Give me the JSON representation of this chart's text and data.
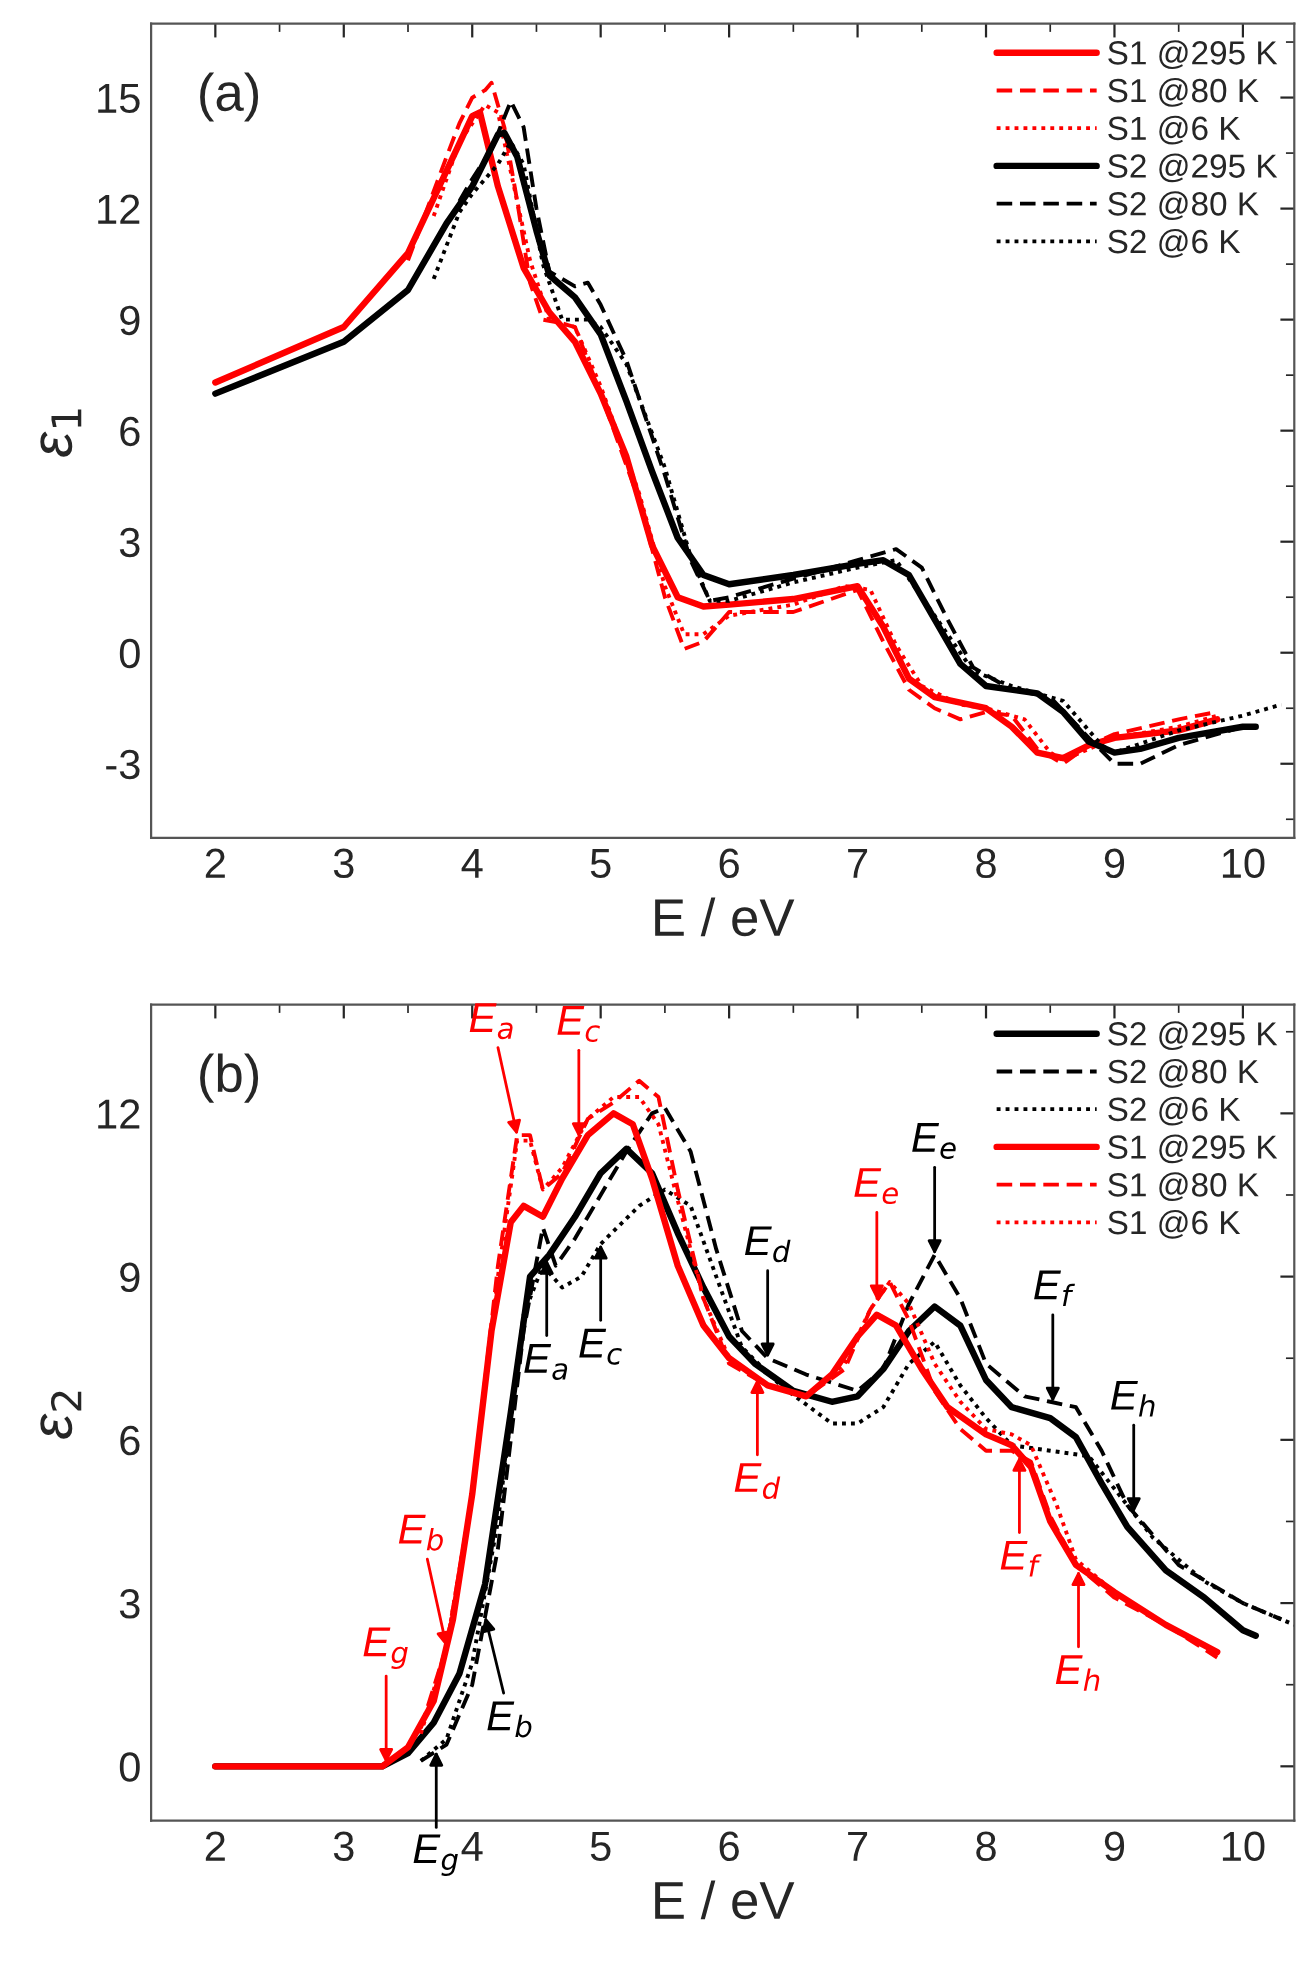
{
  "chart_data": [
    {
      "type": "line",
      "xlabel": "E / eV",
      "ylabel": "ε$_{1}$",
      "xlim": [
        1.5,
        10.4
      ],
      "ylim": [
        -5,
        17
      ],
      "xticks": [
        2,
        3,
        4,
        5,
        6,
        7,
        8,
        9,
        10
      ],
      "yticks": [
        -3,
        0,
        3,
        6,
        9,
        12,
        15
      ],
      "legend": "top right",
      "grid": false,
      "annotations": [
        "(a)"
      ],
      "series": [
        {
          "name": "S1 @295 K",
          "color": "#ff0000",
          "line_style": "solid",
          "x": [
            2.0,
            3.0,
            3.5,
            4.0,
            4.06,
            4.2,
            4.4,
            4.6,
            4.8,
            5.0,
            5.2,
            5.4,
            5.6,
            5.8,
            6.0,
            6.5,
            7.0,
            7.2,
            7.4,
            7.6,
            8.0,
            8.2,
            8.4,
            8.6,
            8.8,
            9.0,
            9.5,
            9.8
          ],
          "values": [
            7.3,
            8.8,
            10.8,
            14.5,
            14.6,
            12.6,
            10.4,
            9.2,
            8.4,
            7.0,
            5.3,
            2.9,
            1.5,
            1.25,
            1.3,
            1.45,
            1.8,
            0.7,
            -0.7,
            -1.2,
            -1.5,
            -2.0,
            -2.7,
            -2.85,
            -2.5,
            -2.3,
            -2.1,
            -1.8
          ]
        },
        {
          "name": "S1 @80 K",
          "color": "#ff0000",
          "line_style": "dashed",
          "x": [
            3.5,
            3.8,
            3.9,
            4.0,
            4.1,
            4.15,
            4.25,
            4.35,
            4.45,
            4.55,
            4.7,
            4.8,
            5.0,
            5.3,
            5.5,
            5.65,
            5.8,
            6.0,
            6.5,
            7.0,
            7.2,
            7.4,
            7.6,
            7.8,
            8.0,
            8.2,
            8.4,
            8.6,
            8.8,
            9.0,
            9.5,
            9.8
          ],
          "values": [
            10.6,
            13.4,
            14.3,
            15.0,
            15.2,
            15.4,
            14.2,
            12.2,
            10.0,
            9.0,
            8.9,
            8.8,
            7.0,
            4.1,
            1.5,
            0.1,
            0.3,
            1.1,
            1.1,
            1.7,
            0.3,
            -1.0,
            -1.5,
            -1.8,
            -1.6,
            -1.7,
            -2.6,
            -3.0,
            -2.5,
            -2.2,
            -1.8,
            -1.6
          ]
        },
        {
          "name": "S1 @6 K",
          "color": "#ff0000",
          "line_style": "dotted",
          "x": [
            3.7,
            3.9,
            4.1,
            4.2,
            4.3,
            4.45,
            4.6,
            4.8,
            5.0,
            5.3,
            5.5,
            5.65,
            5.8,
            6.0,
            6.5,
            6.9,
            7.1,
            7.3,
            7.5,
            7.8,
            8.0,
            8.3,
            8.5,
            8.6,
            8.8,
            9.0,
            9.5,
            9.8
          ],
          "values": [
            11.8,
            13.8,
            14.8,
            14.6,
            13.0,
            10.6,
            9.0,
            8.8,
            7.2,
            4.3,
            1.8,
            0.5,
            0.5,
            1.0,
            1.3,
            1.8,
            1.7,
            0.2,
            -0.9,
            -1.4,
            -1.5,
            -1.8,
            -2.7,
            -2.9,
            -2.6,
            -2.3,
            -2.0,
            -1.7
          ]
        },
        {
          "name": "S2 @295 K",
          "color": "#000000",
          "line_style": "solid",
          "x": [
            2.0,
            3.0,
            3.5,
            3.8,
            4.0,
            4.2,
            4.25,
            4.35,
            4.5,
            4.6,
            4.8,
            5.0,
            5.2,
            5.4,
            5.6,
            5.8,
            6.0,
            6.5,
            7.0,
            7.2,
            7.4,
            7.6,
            7.8,
            8.0,
            8.4,
            8.6,
            8.8,
            9.0,
            9.2,
            9.5,
            10.0,
            10.1
          ],
          "values": [
            7.0,
            8.4,
            9.8,
            11.6,
            12.6,
            14.0,
            14.05,
            13.4,
            11.4,
            10.2,
            9.6,
            8.6,
            6.8,
            4.9,
            3.1,
            2.1,
            1.85,
            2.1,
            2.4,
            2.5,
            2.1,
            0.9,
            -0.3,
            -0.9,
            -1.1,
            -1.6,
            -2.4,
            -2.7,
            -2.6,
            -2.3,
            -2.0,
            -2.0
          ]
        },
        {
          "name": "S2 @80 K",
          "color": "#000000",
          "line_style": "dashed",
          "x": [
            3.9,
            4.0,
            4.15,
            4.3,
            4.4,
            4.5,
            4.6,
            4.8,
            4.9,
            5.0,
            5.2,
            5.5,
            5.7,
            5.85,
            6.0,
            6.5,
            7.0,
            7.3,
            7.5,
            7.7,
            7.9,
            8.2,
            8.5,
            8.8,
            9.0,
            9.2,
            9.5,
            10.0
          ],
          "values": [
            12.2,
            12.8,
            13.6,
            14.9,
            14.2,
            12.0,
            10.3,
            9.9,
            10.0,
            9.4,
            7.9,
            4.8,
            2.5,
            1.4,
            1.5,
            2.0,
            2.5,
            2.8,
            2.3,
            0.9,
            -0.4,
            -1.0,
            -1.2,
            -2.3,
            -3.0,
            -3.0,
            -2.5,
            -2.0
          ]
        },
        {
          "name": "S2 @6 K",
          "color": "#000000",
          "line_style": "dotted",
          "x": [
            3.7,
            3.9,
            4.0,
            4.2,
            4.3,
            4.4,
            4.55,
            4.7,
            4.9,
            5.0,
            5.2,
            5.5,
            5.7,
            5.85,
            6.0,
            6.5,
            7.0,
            7.3,
            7.6,
            7.9,
            8.2,
            8.6,
            8.9,
            9.0,
            9.5,
            10.0,
            10.3
          ],
          "values": [
            10.1,
            11.9,
            12.4,
            13.2,
            13.8,
            13.2,
            10.5,
            9.0,
            9.0,
            8.8,
            7.8,
            5.0,
            2.6,
            1.4,
            1.4,
            1.9,
            2.3,
            2.5,
            1.0,
            -0.5,
            -0.9,
            -1.3,
            -2.5,
            -2.7,
            -2.1,
            -1.7,
            -1.4
          ]
        }
      ]
    },
    {
      "type": "line",
      "xlabel": "E / eV",
      "ylabel": "ε$_{2}$",
      "xlim": [
        1.5,
        10.4
      ],
      "ylim": [
        -1,
        14
      ],
      "xticks": [
        2,
        3,
        4,
        5,
        6,
        7,
        8,
        9,
        10
      ],
      "yticks": [
        0,
        3,
        6,
        9,
        12
      ],
      "legend": "top right",
      "grid": false,
      "annotations": [
        "(b)",
        {
          "text": "E$_{g}$",
          "x": 3.33,
          "y": 0.05
        },
        {
          "text": "E$_{b}$",
          "x": 3.8,
          "y": 2.2
        },
        {
          "text": "E$_{a}$",
          "x": 4.35,
          "y": 11.6
        },
        {
          "text": "E$_{c}$",
          "x": 4.83,
          "y": 11.55
        },
        {
          "text": "E$_{d}$",
          "x": 6.22,
          "y": 7.13
        },
        {
          "text": "E$_{e}$",
          "x": 7.15,
          "y": 8.57
        },
        {
          "text": "E$_{f}$",
          "x": 8.26,
          "y": 5.7
        },
        {
          "text": "E$_{h}$",
          "x": 8.72,
          "y": 3.6
        },
        {
          "text": "E$_{g}$",
          "x": 3.72,
          "y": 0.28
        },
        {
          "text": "E$_{b}$",
          "x": 4.1,
          "y": 2.75
        },
        {
          "text": "E$_{a}$",
          "x": 4.58,
          "y": 9.32
        },
        {
          "text": "E$_{c}$",
          "x": 5.0,
          "y": 9.6
        },
        {
          "text": "E$_{d}$",
          "x": 6.3,
          "y": 7.5
        },
        {
          "text": "E$_{e}$",
          "x": 7.6,
          "y": 9.4
        },
        {
          "text": "E$_{f}$",
          "x": 8.52,
          "y": 6.69
        },
        {
          "text": "E$_{h}$",
          "x": 9.15,
          "y": 4.66
        }
      ],
      "series": [
        {
          "name": "S2 @295 K",
          "color": "#000000",
          "line_style": "solid",
          "x": [
            2.0,
            3.3,
            3.5,
            3.7,
            3.9,
            4.1,
            4.3,
            4.45,
            4.6,
            4.8,
            5.0,
            5.2,
            5.4,
            5.6,
            5.8,
            6.0,
            6.2,
            6.5,
            6.8,
            7.0,
            7.2,
            7.4,
            7.6,
            7.8,
            8.0,
            8.2,
            8.5,
            8.7,
            8.9,
            9.1,
            9.4,
            9.7,
            10.0,
            10.1
          ],
          "values": [
            0,
            0,
            0.24,
            0.8,
            1.7,
            3.35,
            6.5,
            9.0,
            9.4,
            10.1,
            10.9,
            11.35,
            10.9,
            9.8,
            8.8,
            7.9,
            7.4,
            6.9,
            6.7,
            6.8,
            7.3,
            8.0,
            8.45,
            8.1,
            7.1,
            6.6,
            6.4,
            6.05,
            5.2,
            4.4,
            3.6,
            3.1,
            2.5,
            2.4
          ]
        },
        {
          "name": "S2 @80 K",
          "color": "#000000",
          "line_style": "dashed",
          "x": [
            3.6,
            3.8,
            4.0,
            4.2,
            4.4,
            4.55,
            4.65,
            4.8,
            5.0,
            5.2,
            5.4,
            5.5,
            5.7,
            5.9,
            6.1,
            6.3,
            6.6,
            7.0,
            7.2,
            7.4,
            7.6,
            7.8,
            8.0,
            8.3,
            8.5,
            8.7,
            8.9,
            9.1,
            9.5,
            10.0,
            10.3
          ],
          "values": [
            0.1,
            0.4,
            1.5,
            4.0,
            8.0,
            9.9,
            9.2,
            9.7,
            10.5,
            11.3,
            12.0,
            12.1,
            11.3,
            9.5,
            8.0,
            7.5,
            7.2,
            6.9,
            7.3,
            8.5,
            9.4,
            8.6,
            7.4,
            6.8,
            6.7,
            6.6,
            5.8,
            4.8,
            3.7,
            3.0,
            2.7
          ]
        },
        {
          "name": "S2 @6 K",
          "color": "#000000",
          "line_style": "dotted",
          "x": [
            3.6,
            3.8,
            4.0,
            4.2,
            4.4,
            4.55,
            4.7,
            4.85,
            5.0,
            5.3,
            5.5,
            5.7,
            5.9,
            6.1,
            6.4,
            6.8,
            7.0,
            7.2,
            7.4,
            7.6,
            7.8,
            8.0,
            8.2,
            8.5,
            8.8,
            9.0,
            9.3,
            9.7,
            10.0,
            10.4
          ],
          "values": [
            0.1,
            0.5,
            1.9,
            4.5,
            8.3,
            9.2,
            8.8,
            9.0,
            9.6,
            10.3,
            10.6,
            10.3,
            9.0,
            7.7,
            7.0,
            6.3,
            6.3,
            6.6,
            7.4,
            7.8,
            7.0,
            6.4,
            5.9,
            5.8,
            5.7,
            5.1,
            4.2,
            3.4,
            3.0,
            2.6
          ]
        },
        {
          "name": "S1 @295 K",
          "color": "#ff0000",
          "line_style": "solid",
          "x": [
            2.0,
            3.3,
            3.5,
            3.7,
            3.85,
            4.0,
            4.15,
            4.3,
            4.4,
            4.55,
            4.7,
            4.9,
            5.1,
            5.25,
            5.4,
            5.6,
            5.8,
            6.0,
            6.3,
            6.6,
            6.8,
            7.0,
            7.15,
            7.3,
            7.5,
            7.7,
            8.0,
            8.2,
            8.35,
            8.5,
            8.7,
            9.0,
            9.4,
            9.8
          ],
          "values": [
            0,
            0,
            0.35,
            1.2,
            2.7,
            5.0,
            8.0,
            10.0,
            10.3,
            10.1,
            10.8,
            11.6,
            12.0,
            11.8,
            10.8,
            9.2,
            8.1,
            7.5,
            7.0,
            6.8,
            7.2,
            7.9,
            8.3,
            8.1,
            7.3,
            6.6,
            6.1,
            5.9,
            5.5,
            4.5,
            3.7,
            3.2,
            2.6,
            2.1
          ]
        },
        {
          "name": "S1 @80 K",
          "color": "#ff0000",
          "line_style": "dashed",
          "x": [
            3.6,
            3.8,
            4.0,
            4.2,
            4.35,
            4.45,
            4.55,
            4.7,
            4.9,
            5.1,
            5.3,
            5.45,
            5.6,
            5.8,
            6.0,
            6.3,
            6.6,
            6.9,
            7.1,
            7.25,
            7.4,
            7.6,
            7.8,
            8.0,
            8.2,
            8.35,
            8.5,
            8.7,
            9.0,
            9.4,
            9.8
          ],
          "values": [
            0.7,
            2.2,
            5.0,
            9.2,
            11.6,
            11.6,
            10.6,
            10.9,
            11.9,
            12.2,
            12.6,
            12.3,
            10.6,
            8.6,
            7.4,
            7.0,
            6.8,
            7.3,
            8.4,
            8.9,
            8.2,
            6.9,
            6.2,
            5.8,
            5.8,
            5.6,
            4.6,
            3.7,
            3.1,
            2.6,
            2.0
          ]
        },
        {
          "name": "S1 @6 K",
          "color": "#ff0000",
          "line_style": "dotted",
          "x": [
            3.6,
            3.8,
            4.0,
            4.2,
            4.35,
            4.45,
            4.55,
            4.7,
            4.9,
            5.1,
            5.3,
            5.45,
            5.6,
            5.8,
            6.0,
            6.3,
            6.6,
            6.9,
            7.1,
            7.25,
            7.4,
            7.6,
            7.8,
            8.0,
            8.2,
            8.35,
            8.55,
            8.7,
            9.0,
            9.4,
            9.8
          ],
          "values": [
            0.6,
            2.2,
            5.0,
            9.0,
            11.5,
            11.5,
            10.6,
            11.0,
            11.9,
            12.3,
            12.3,
            11.8,
            10.4,
            8.6,
            7.5,
            7.0,
            6.8,
            7.4,
            8.4,
            8.9,
            8.5,
            7.4,
            6.7,
            6.2,
            6.1,
            5.9,
            4.8,
            3.8,
            3.2,
            2.6,
            2.1
          ]
        }
      ]
    }
  ]
}
